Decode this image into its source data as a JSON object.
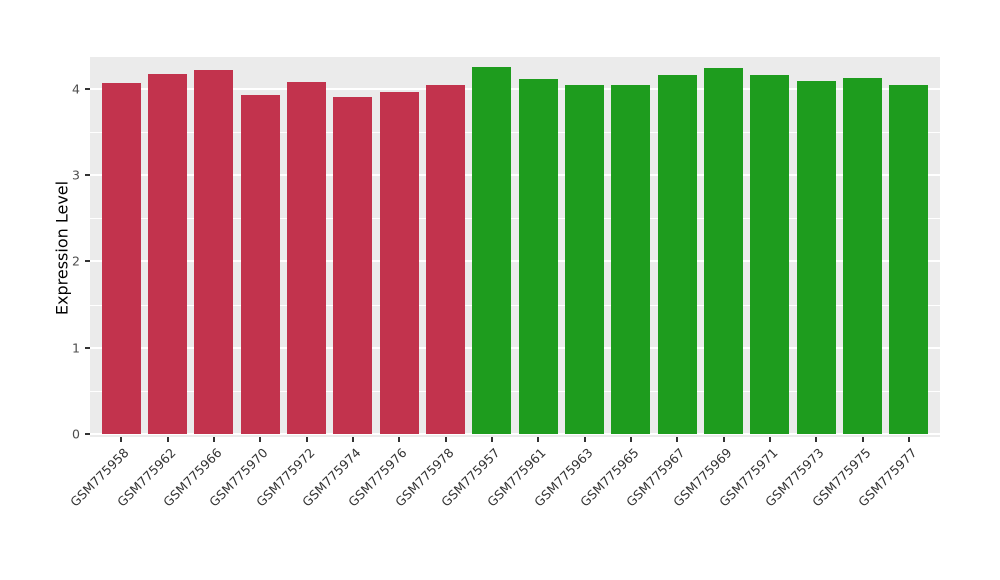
{
  "chart_data": {
    "type": "bar",
    "title": "",
    "xlabel": "",
    "ylabel": "Expression Level",
    "ylim": [
      0,
      4.37
    ],
    "yticks": [
      0,
      1,
      2,
      3,
      4
    ],
    "grid": "on",
    "legend": "none",
    "panel_background": "#EBEBEB",
    "grid_color": "#FFFFFF",
    "categories": [
      "GSM775958",
      "GSM775962",
      "GSM775966",
      "GSM775970",
      "GSM775972",
      "GSM775974",
      "GSM775976",
      "GSM775978",
      "GSM775957",
      "GSM775961",
      "GSM775963",
      "GSM775965",
      "GSM775967",
      "GSM775969",
      "GSM775971",
      "GSM775973",
      "GSM775975",
      "GSM775977"
    ],
    "values": [
      4.07,
      4.17,
      4.22,
      3.93,
      4.08,
      3.91,
      3.97,
      4.04,
      4.26,
      4.12,
      4.04,
      4.05,
      4.16,
      4.24,
      4.16,
      4.09,
      4.13,
      4.05
    ],
    "groups": [
      "red",
      "red",
      "red",
      "red",
      "red",
      "red",
      "red",
      "red",
      "green",
      "green",
      "green",
      "green",
      "green",
      "green",
      "green",
      "green",
      "green",
      "green"
    ],
    "palette": {
      "red": "#C2334D",
      "green": "#1E9C1E"
    }
  }
}
